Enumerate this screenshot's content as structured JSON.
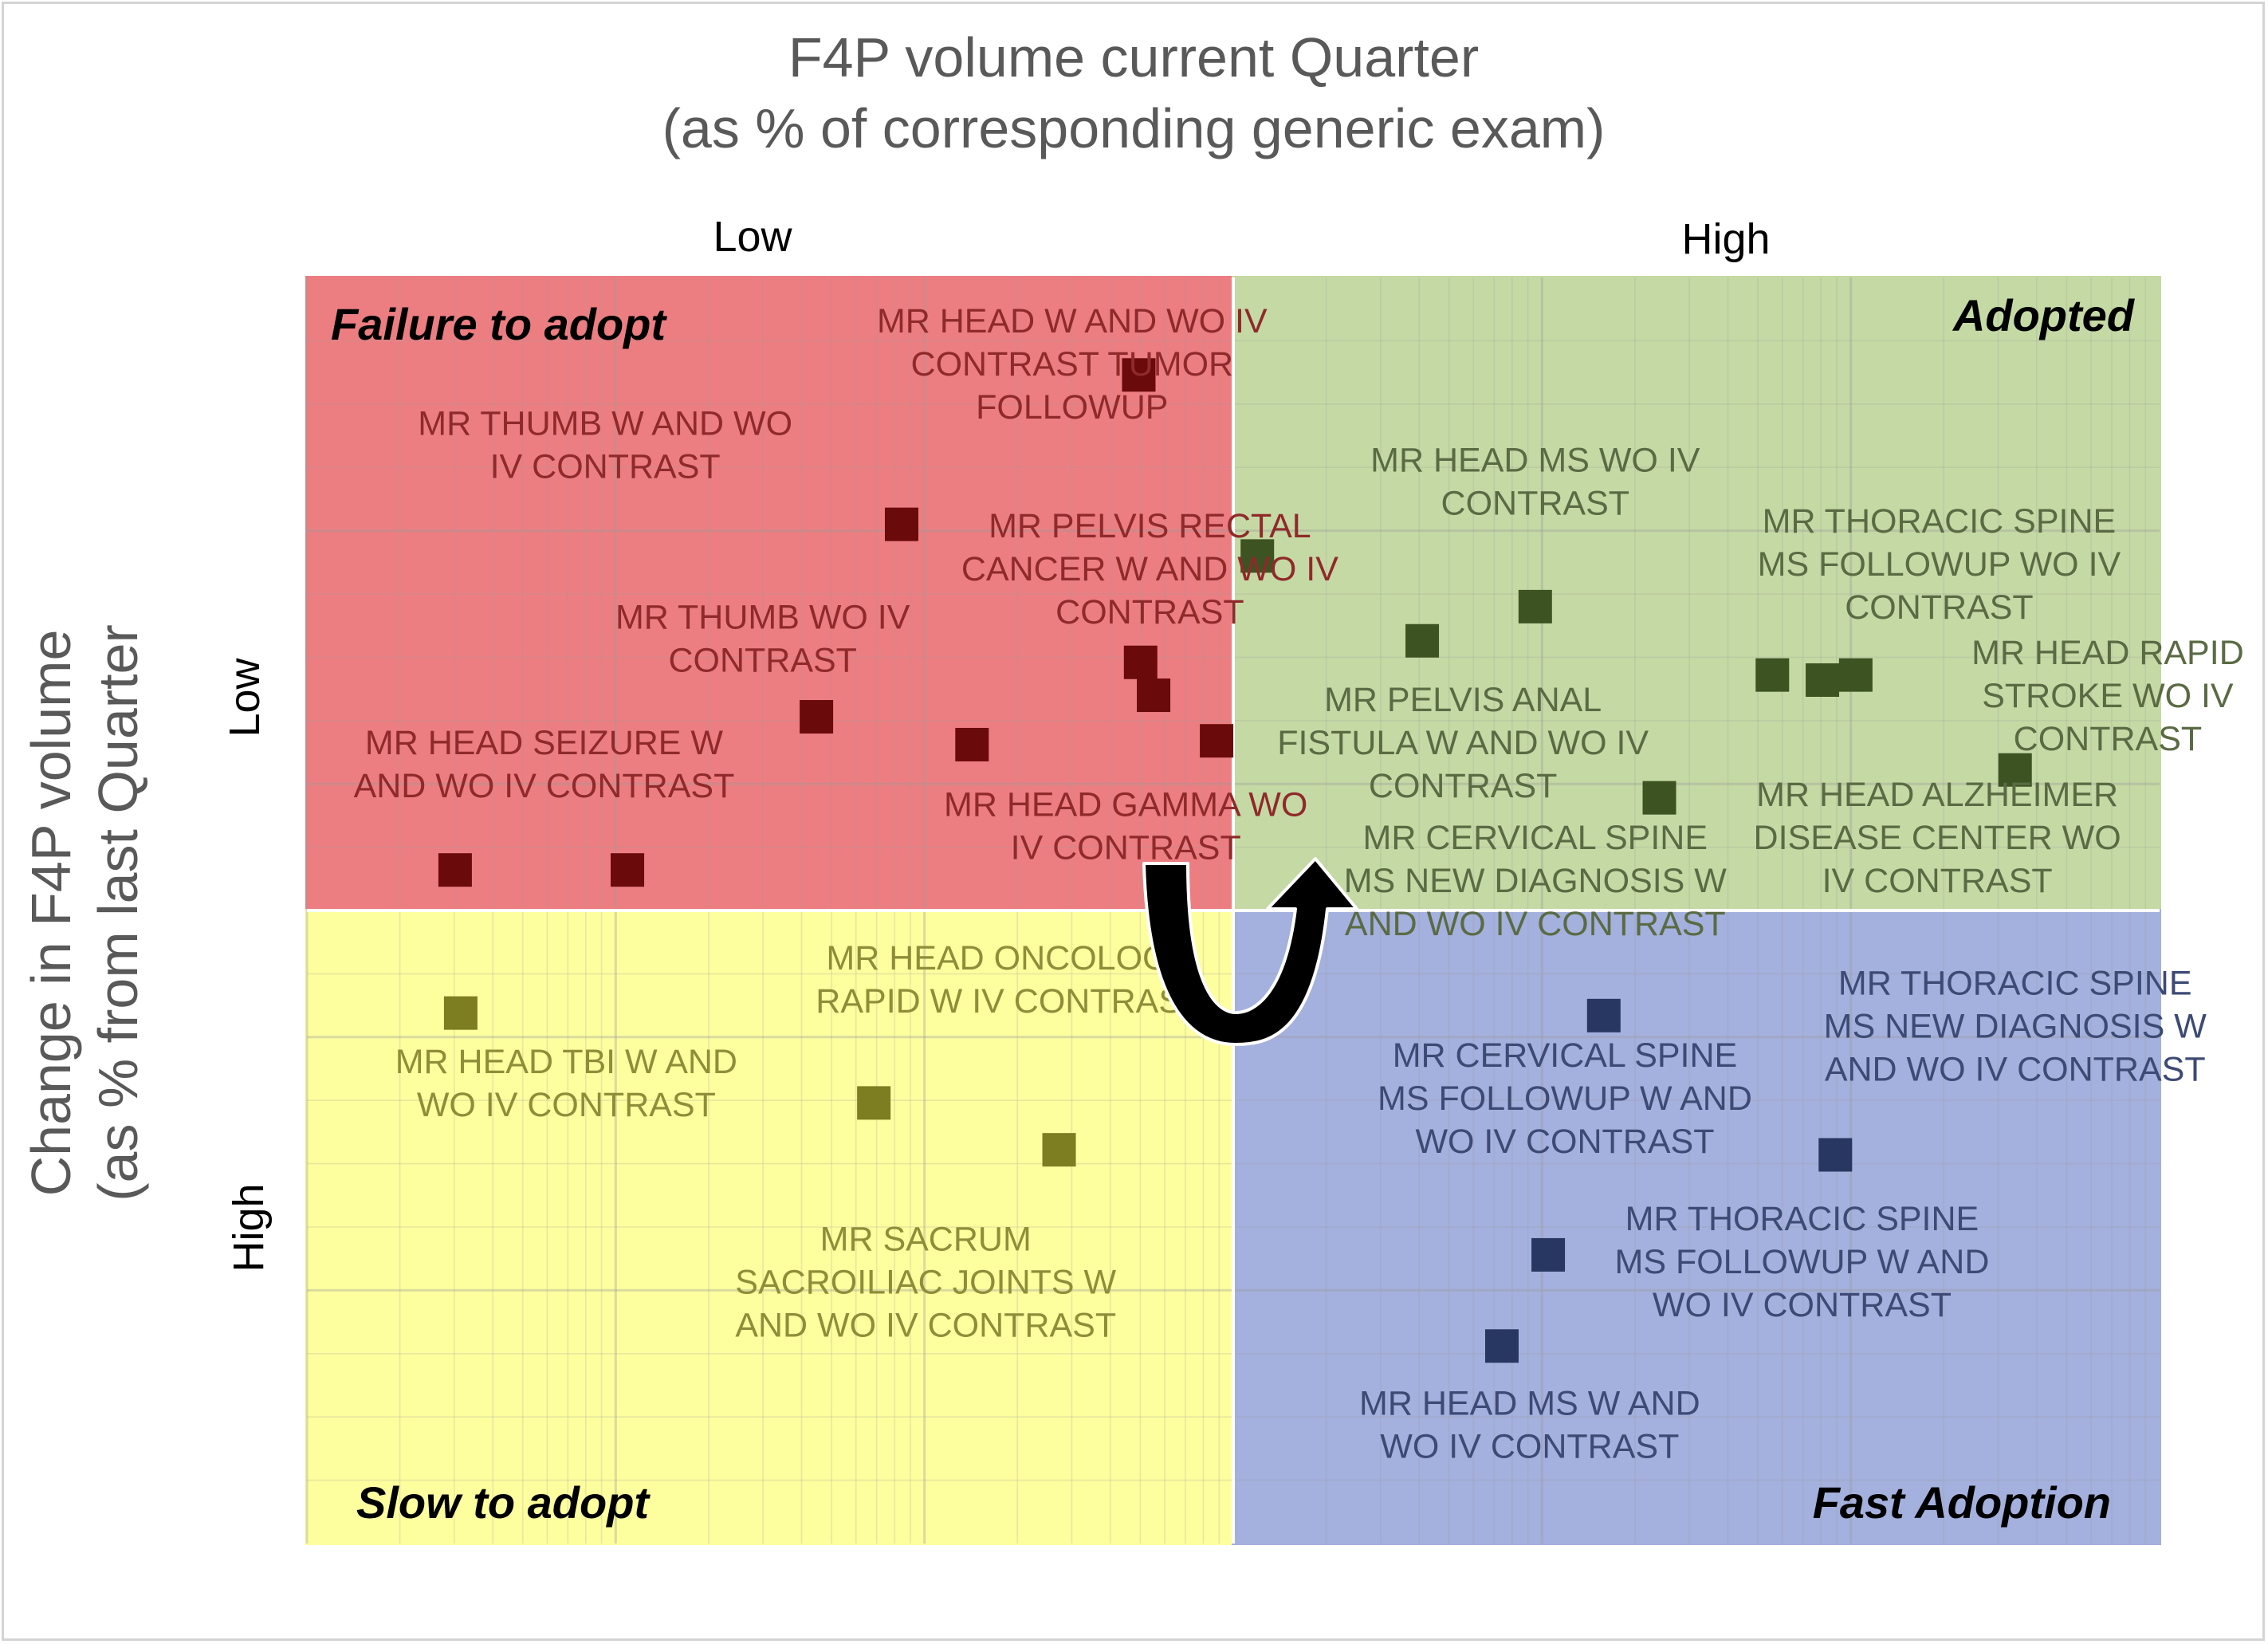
{
  "chart_data": {
    "type": "scatter",
    "title": [
      "F4P volume current Quarter",
      "(as % of corresponding generic exam)"
    ],
    "xlabel": "",
    "ylabel": [
      "Change in F4P volume",
      "(as % from last Quarter"
    ],
    "x_levels": [
      "Low",
      "High"
    ],
    "y_levels": [
      "Low",
      "High"
    ],
    "xlim": [
      0,
      100
    ],
    "ylim": [
      0,
      100
    ],
    "y_inverted": true,
    "quadrant_split": {
      "x": 50,
      "y": 50
    },
    "grid": true,
    "x_scale": "log-style minor grid",
    "quadrants": [
      {
        "id": "failure",
        "name": "Failure to adopt",
        "fill": "#ec7e82",
        "marker": "#6a0a0a",
        "label_color": "#8f2a2a"
      },
      {
        "id": "adopted",
        "name": "Adopted",
        "fill": "#c5d9a5",
        "marker": "#3d5322",
        "label_color": "#5a6b44"
      },
      {
        "id": "slow",
        "name": "Slow to adopt",
        "fill": "#fdfe9e",
        "marker": "#7d7d22",
        "label_color": "#8e8e3a"
      },
      {
        "id": "fast",
        "name": "Fast Adoption",
        "fill": "#a4b0dd",
        "marker": "#283761",
        "label_color": "#3d4a74"
      }
    ],
    "points": [
      {
        "q": "failure",
        "x": 44.9,
        "y": 7.7
      },
      {
        "q": "failure",
        "x": 32.1,
        "y": 19.5
      },
      {
        "q": "failure",
        "x": 45.0,
        "y": 30.4
      },
      {
        "q": "failure",
        "x": 45.7,
        "y": 33.0
      },
      {
        "q": "failure",
        "x": 27.5,
        "y": 34.7
      },
      {
        "q": "failure",
        "x": 35.9,
        "y": 36.9
      },
      {
        "q": "failure",
        "x": 49.1,
        "y": 36.6
      },
      {
        "q": "failure",
        "x": 17.3,
        "y": 46.8
      },
      {
        "q": "failure",
        "x": 8.0,
        "y": 46.8
      },
      {
        "q": "adopted",
        "x": 51.3,
        "y": 22.0
      },
      {
        "q": "adopted",
        "x": 66.3,
        "y": 26.0
      },
      {
        "q": "adopted",
        "x": 60.2,
        "y": 28.7
      },
      {
        "q": "adopted",
        "x": 79.1,
        "y": 31.4
      },
      {
        "q": "adopted",
        "x": 81.8,
        "y": 31.8
      },
      {
        "q": "adopted",
        "x": 83.6,
        "y": 31.4
      },
      {
        "q": "adopted",
        "x": 92.2,
        "y": 38.9
      },
      {
        "q": "adopted",
        "x": 73.0,
        "y": 41.1
      },
      {
        "q": "slow",
        "x": 8.3,
        "y": 58.1
      },
      {
        "q": "slow",
        "x": 30.6,
        "y": 65.2
      },
      {
        "q": "slow",
        "x": 40.6,
        "y": 68.9
      },
      {
        "q": "fast",
        "x": 70.0,
        "y": 58.3
      },
      {
        "q": "fast",
        "x": 82.5,
        "y": 69.3
      },
      {
        "q": "fast",
        "x": 67.0,
        "y": 77.2
      },
      {
        "q": "fast",
        "x": 64.5,
        "y": 84.4
      }
    ],
    "annotations": [
      {
        "q": "failure",
        "lines": [
          "MR HEAD W AND WO IV",
          "CONTRAST TUMOR",
          "FOLLOWUP"
        ],
        "x": 41.3,
        "y": 6.8
      },
      {
        "q": "failure",
        "lines": [
          "MR THUMB W AND WO",
          "IV CONTRAST"
        ],
        "x": 16.1,
        "y": 13.2
      },
      {
        "q": "failure",
        "lines": [
          "MR PELVIS RECTAL",
          "CANCER W AND WO IV",
          "CONTRAST"
        ],
        "x": 45.5,
        "y": 23.0
      },
      {
        "q": "failure",
        "lines": [
          "MR THUMB WO IV",
          "CONTRAST"
        ],
        "x": 24.6,
        "y": 28.5
      },
      {
        "q": "failure",
        "lines": [
          "MR HEAD SEIZURE W",
          "AND WO IV CONTRAST"
        ],
        "x": 12.8,
        "y": 38.4
      },
      {
        "q": "failure",
        "lines": [
          "MR HEAD GAMMA WO",
          "IV CONTRAST"
        ],
        "x": 44.2,
        "y": 43.3
      },
      {
        "q": "adopted",
        "lines": [
          "MR HEAD MS WO IV",
          "CONTRAST"
        ],
        "x": 66.3,
        "y": 16.1
      },
      {
        "q": "adopted",
        "lines": [
          "MR THORACIC SPINE",
          "MS FOLLOWUP WO IV",
          "CONTRAST"
        ],
        "x": 88.1,
        "y": 22.6
      },
      {
        "q": "adopted",
        "lines": [
          "MR HEAD RAPID",
          "STROKE WO IV",
          "CONTRAST"
        ],
        "x": 97.2,
        "y": 33.0
      },
      {
        "q": "adopted",
        "lines": [
          "MR PELVIS ANAL",
          "FISTULA W AND WO IV",
          "CONTRAST"
        ],
        "x": 62.4,
        "y": 36.7
      },
      {
        "q": "adopted",
        "lines": [
          "MR HEAD ALZHEIMER",
          "DISEASE CENTER WO",
          "IV CONTRAST"
        ],
        "x": 88.0,
        "y": 44.2
      },
      {
        "q": "adopted",
        "lines": [
          "MR CERVICAL SPINE",
          "MS NEW DIAGNOSIS W",
          "AND WO IV CONTRAST"
        ],
        "x": 66.3,
        "y": 47.6
      },
      {
        "q": "slow",
        "lines": [
          "MR HEAD ONCOLOGY",
          "RAPID W IV CONTRAST"
        ],
        "x": 37.9,
        "y": 55.4
      },
      {
        "q": "slow",
        "lines": [
          "MR HEAD TBI W AND",
          "WO IV CONTRAST"
        ],
        "x": 14.0,
        "y": 63.6
      },
      {
        "q": "slow",
        "lines": [
          "MR SACRUM",
          "SACROILIAC JOINTS W",
          "AND WO IV CONTRAST"
        ],
        "x": 33.4,
        "y": 79.3
      },
      {
        "q": "fast",
        "lines": [
          "MR THORACIC SPINE",
          "MS NEW DIAGNOSIS W",
          "AND WO IV CONTRAST"
        ],
        "x": 92.2,
        "y": 59.1
      },
      {
        "q": "fast",
        "lines": [
          "MR CERVICAL SPINE",
          "MS FOLLOWUP W AND",
          "WO IV CONTRAST"
        ],
        "x": 67.9,
        "y": 64.8
      },
      {
        "q": "fast",
        "lines": [
          "MR THORACIC SPINE",
          "MS FOLLOWUP W AND",
          "WO IV CONTRAST"
        ],
        "x": 80.7,
        "y": 77.7
      },
      {
        "q": "fast",
        "lines": [
          "MR HEAD MS W AND",
          "WO IV CONTRAST"
        ],
        "x": 66.0,
        "y": 90.6
      }
    ],
    "arrow": {
      "from_quadrant": "failure",
      "to_quadrant": "adopted",
      "shape": "u-turn",
      "color": "#000000"
    }
  }
}
